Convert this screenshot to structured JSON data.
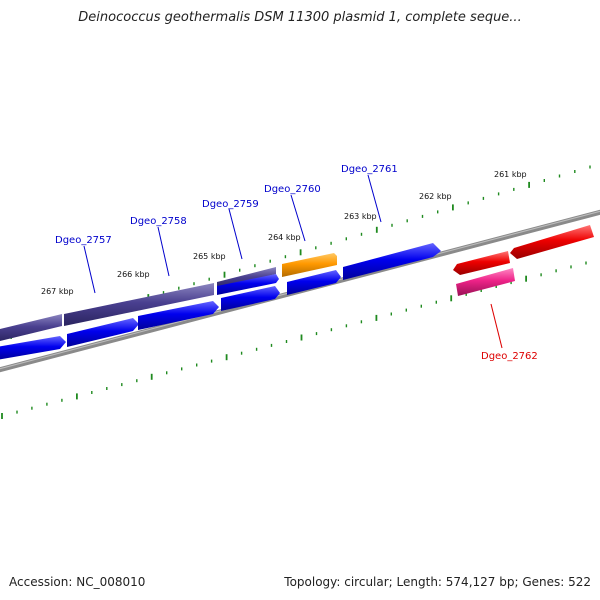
{
  "title": "Deinococcus geothermalis DSM 11300 plasmid 1, complete seque...",
  "footer": {
    "accession": "Accession: NC_008010",
    "summary": "Topology: circular; Length: 574,127 bp; Genes: 522"
  },
  "ruler": {
    "labels": [
      "261 kbp",
      "262 kbp",
      "263 kbp",
      "264 kbp",
      "265 kbp",
      "266 kbp",
      "267 kbp"
    ]
  },
  "genes": [
    {
      "name": "Dgeo_2757",
      "color": "#0000cc"
    },
    {
      "name": "Dgeo_2758",
      "color": "#0000cc"
    },
    {
      "name": "Dgeo_2759",
      "color": "#0000cc"
    },
    {
      "name": "Dgeo_2760",
      "color": "#0000cc"
    },
    {
      "name": "Dgeo_2761",
      "color": "#0000cc"
    },
    {
      "name": "Dgeo_2762",
      "color": "#dd0000"
    }
  ],
  "colors": {
    "backbone": "#808080",
    "tick": "#1f8a1f",
    "gene_forward": "#0000ee",
    "gene_reverse": "#ee0000",
    "feature_purple": "#4a4090",
    "feature_orange": "#ff9900",
    "feature_pink": "#ff3399"
  }
}
